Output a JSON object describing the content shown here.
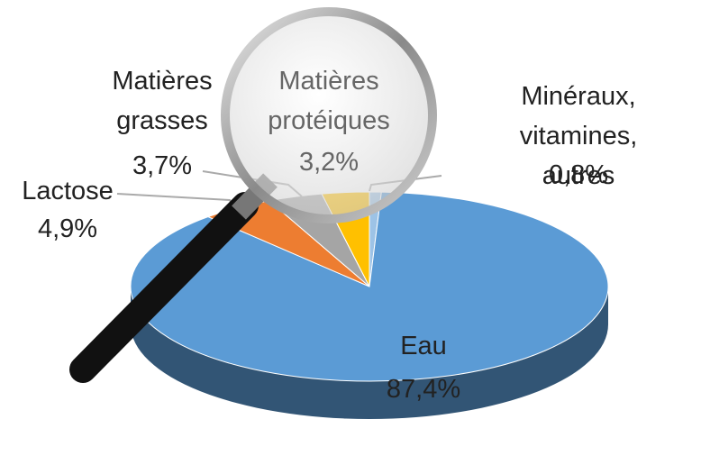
{
  "chart_data": {
    "type": "pie",
    "categories": [
      "Minéraux,\nvitamines, autres",
      "Eau",
      "Lactose",
      "Matières\ngrasses",
      "Matières\nprotéiques"
    ],
    "values": [
      0.8,
      87.4,
      4.9,
      3.7,
      3.2
    ],
    "value_labels": [
      "0,8%",
      "87,4%",
      "4,9%",
      "3,7%",
      "3,2%"
    ],
    "colors": [
      "#9dc3e6",
      "#5b9bd5",
      "#ed7d31",
      "#a5a5a5",
      "#ffc000"
    ]
  }
}
